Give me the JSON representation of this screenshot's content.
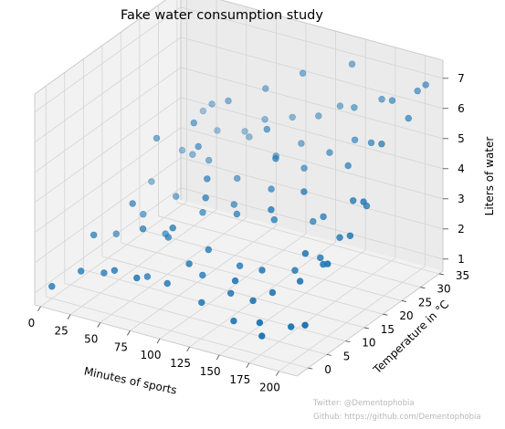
{
  "chart_data": {
    "type": "scatter",
    "title": "Fake water consumption study",
    "xlabel": "Minutes of sports",
    "ylabel": "Temperature in °C",
    "zlabel": "Liters of water",
    "xlim": [
      -5,
      215
    ],
    "ylim": [
      -3,
      36
    ],
    "zlim": [
      0.6,
      7.6
    ],
    "xticks": [
      "0",
      "25",
      "50",
      "75",
      "100",
      "125",
      "150",
      "175",
      "200"
    ],
    "yticks": [
      "0",
      "5",
      "10",
      "15",
      "20",
      "25",
      "30",
      "35"
    ],
    "zticks": [
      "1",
      "2",
      "3",
      "4",
      "5",
      "6",
      "7"
    ],
    "grid": true,
    "marker_color": "#1f77b4",
    "points": [
      {
        "x": 0,
        "y": 0,
        "z": 1.0
      },
      {
        "x": 15,
        "y": 3,
        "z": 1.4
      },
      {
        "x": 28,
        "y": 5,
        "z": 1.3
      },
      {
        "x": 40,
        "y": 4,
        "z": 1.6
      },
      {
        "x": 55,
        "y": 8,
        "z": 1.2
      },
      {
        "x": 65,
        "y": 2,
        "z": 1.8
      },
      {
        "x": 78,
        "y": 6,
        "z": 1.4
      },
      {
        "x": 95,
        "y": 10,
        "z": 1.5
      },
      {
        "x": 110,
        "y": 5,
        "z": 1.2
      },
      {
        "x": 125,
        "y": 8,
        "z": 1.4
      },
      {
        "x": 140,
        "y": 4,
        "z": 1.0
      },
      {
        "x": 150,
        "y": 6,
        "z": 1.6
      },
      {
        "x": 165,
        "y": 3,
        "z": 1.3
      },
      {
        "x": 170,
        "y": 2,
        "z": 1.0
      },
      {
        "x": 185,
        "y": 5,
        "z": 1.2
      },
      {
        "x": 200,
        "y": 4,
        "z": 1.5
      },
      {
        "x": 120,
        "y": 12,
        "z": 1.9
      },
      {
        "x": 145,
        "y": 10,
        "z": 2.2
      },
      {
        "x": 160,
        "y": 14,
        "z": 2.0
      },
      {
        "x": 180,
        "y": 9,
        "z": 2.3
      },
      {
        "x": 190,
        "y": 12,
        "z": 2.7
      },
      {
        "x": 175,
        "y": 16,
        "z": 2.4
      },
      {
        "x": 10,
        "y": 14,
        "z": 1.6
      },
      {
        "x": 20,
        "y": 18,
        "z": 2.0
      },
      {
        "x": 45,
        "y": 16,
        "z": 1.8
      },
      {
        "x": 60,
        "y": 12,
        "z": 2.2
      },
      {
        "x": 35,
        "y": 22,
        "z": 2.4
      },
      {
        "x": 70,
        "y": 18,
        "z": 2.6
      },
      {
        "x": 90,
        "y": 20,
        "z": 2.9
      },
      {
        "x": 105,
        "y": 16,
        "z": 3.1
      },
      {
        "x": 130,
        "y": 18,
        "z": 3.0
      },
      {
        "x": 150,
        "y": 22,
        "z": 2.8
      },
      {
        "x": 165,
        "y": 20,
        "z": 3.3
      },
      {
        "x": 185,
        "y": 18,
        "z": 3.0
      },
      {
        "x": 200,
        "y": 16,
        "z": 3.4
      },
      {
        "x": 195,
        "y": 22,
        "z": 3.8
      },
      {
        "x": 5,
        "y": 25,
        "z": 2.3
      },
      {
        "x": 15,
        "y": 30,
        "z": 3.0
      },
      {
        "x": 30,
        "y": 28,
        "z": 3.2
      },
      {
        "x": 50,
        "y": 26,
        "z": 3.4
      },
      {
        "x": 65,
        "y": 32,
        "z": 3.8
      },
      {
        "x": 80,
        "y": 24,
        "z": 3.3
      },
      {
        "x": 100,
        "y": 28,
        "z": 3.9
      },
      {
        "x": 115,
        "y": 30,
        "z": 4.3
      },
      {
        "x": 130,
        "y": 26,
        "z": 4.0
      },
      {
        "x": 145,
        "y": 28,
        "z": 4.5
      },
      {
        "x": 160,
        "y": 30,
        "z": 4.9
      },
      {
        "x": 170,
        "y": 25,
        "z": 4.6
      },
      {
        "x": 180,
        "y": 28,
        "z": 5.2
      },
      {
        "x": 195,
        "y": 26,
        "z": 5.5
      },
      {
        "x": 205,
        "y": 30,
        "z": 6.1
      },
      {
        "x": 210,
        "y": 33,
        "z": 7.0
      },
      {
        "x": 200,
        "y": 34,
        "z": 6.6
      },
      {
        "x": 185,
        "y": 32,
        "z": 6.3
      },
      {
        "x": 170,
        "y": 34,
        "z": 6.0
      },
      {
        "x": 150,
        "y": 33,
        "z": 5.6
      },
      {
        "x": 135,
        "y": 34,
        "z": 5.4
      },
      {
        "x": 120,
        "y": 33,
        "z": 5.0
      },
      {
        "x": 95,
        "y": 34,
        "z": 4.6
      },
      {
        "x": 75,
        "y": 33,
        "z": 4.4
      },
      {
        "x": 55,
        "y": 34,
        "z": 3.7
      },
      {
        "x": 35,
        "y": 33,
        "z": 3.6
      },
      {
        "x": 20,
        "y": 34,
        "z": 4.0
      },
      {
        "x": 40,
        "y": 30,
        "z": 4.8
      },
      {
        "x": 60,
        "y": 28,
        "z": 5.3
      },
      {
        "x": 85,
        "y": 30,
        "z": 5.8
      },
      {
        "x": 110,
        "y": 32,
        "z": 6.4
      },
      {
        "x": 145,
        "y": 34,
        "z": 6.9
      },
      {
        "x": 25,
        "y": 20,
        "z": 4.4
      },
      {
        "x": 50,
        "y": 22,
        "z": 5.0
      },
      {
        "x": 85,
        "y": 14,
        "z": 3.6
      },
      {
        "x": 100,
        "y": 10,
        "z": 2.4
      },
      {
        "x": 115,
        "y": 22,
        "z": 3.5
      },
      {
        "x": 140,
        "y": 14,
        "z": 3.8
      },
      {
        "x": 155,
        "y": 18,
        "z": 4.2
      },
      {
        "x": 125,
        "y": 20,
        "z": 4.8
      },
      {
        "x": 105,
        "y": 24,
        "z": 5.2
      },
      {
        "x": 90,
        "y": 8,
        "z": 2.0
      },
      {
        "x": 70,
        "y": 10,
        "z": 2.8
      },
      {
        "x": 45,
        "y": 10,
        "z": 2.5
      },
      {
        "x": 30,
        "y": 12,
        "z": 3.0
      },
      {
        "x": 10,
        "y": 8,
        "z": 2.1
      },
      {
        "x": 160,
        "y": 8,
        "z": 1.8
      },
      {
        "x": 175,
        "y": 12,
        "z": 2.9
      },
      {
        "x": 190,
        "y": 20,
        "z": 4.1
      },
      {
        "x": 205,
        "y": 18,
        "z": 4.4
      },
      {
        "x": 200,
        "y": 10,
        "z": 3.0
      },
      {
        "x": 135,
        "y": 6,
        "z": 2.1
      },
      {
        "x": 80,
        "y": 16,
        "z": 4.0
      },
      {
        "x": 60,
        "y": 20,
        "z": 4.5
      }
    ]
  },
  "watermark": {
    "line1": "Twitter: @Dementophobia",
    "line2": "Github: https://github.com/Dementophobia"
  }
}
